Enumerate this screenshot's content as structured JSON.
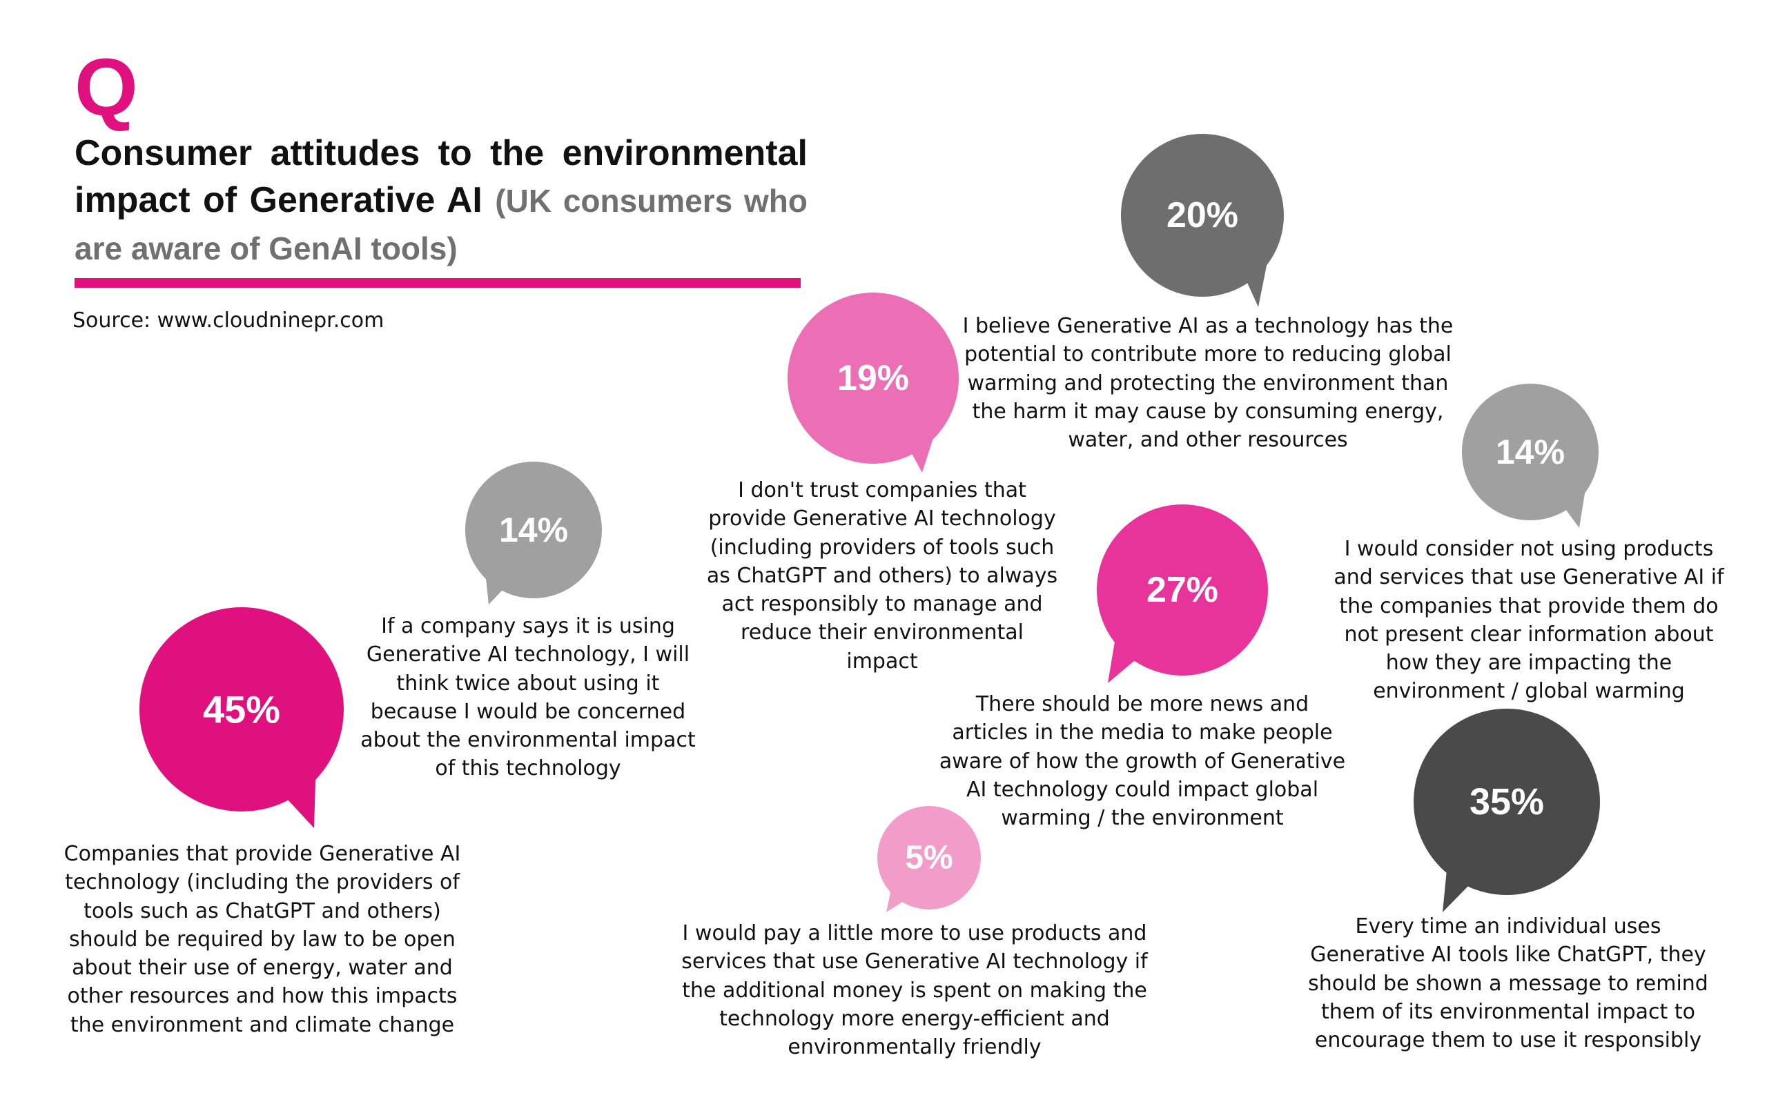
{
  "header": {
    "q_letter": "Q",
    "title": "Consumer attitudes to the environmental impact of Generative AI",
    "subtitle": "(UK consumers who are aware of GenAI tools)",
    "source": "Source: www.cloudninepr.com"
  },
  "colors": {
    "accent": "#e0117f",
    "title_gray": "#707070"
  },
  "chart_data": {
    "type": "bubble-callouts",
    "title": "Consumer attitudes to the environmental impact of Generative AI",
    "subtitle": "(UK consumers who are aware of GenAI tools)",
    "items": [
      {
        "label": "45%",
        "value": 45,
        "color": "#e0117f",
        "text": "Companies that provide Generative AI technology (including the providers of tools such as ChatGPT and others) should be required by law to be open about their use of energy, water and other resources and how this impacts the environment and climate change"
      },
      {
        "label": "14%",
        "value": 14,
        "color": "#a0a0a0",
        "text": "If a company says it is using Generative AI technology, I will think twice about using it because I would be concerned about the environmental impact of this technology"
      },
      {
        "label": "19%",
        "value": 19,
        "color": "#ec6eb5",
        "text": "I don't trust companies that provide Generative AI technology (including providers of tools such as ChatGPT and others) to always act responsibly to manage and reduce their environmental impact"
      },
      {
        "label": "20%",
        "value": 20,
        "color": "#6e6e6e",
        "text": "I believe Generative AI as a technology has the potential to contribute more to reducing global warming and protecting the environment than the harm it may cause by consuming energy, water, and other resources"
      },
      {
        "label": "27%",
        "value": 27,
        "color": "#e8339a",
        "text": "There should be more news and articles in the media to make people aware of how the growth of Generative AI technology could impact global warming / the environment"
      },
      {
        "label": "14%",
        "value": 14,
        "color": "#a0a0a0",
        "text": "I would consider not using products and services that use Generative AI if the companies that provide them do not present clear information about how they are impacting the environment / global warming"
      },
      {
        "label": "5%",
        "value": 5,
        "color": "#f29cc9",
        "text": "I would pay a little more to use products and services that use Generative AI technology if the additional money is spent on making the technology more energy-efficient and environmentally friendly"
      },
      {
        "label": "35%",
        "value": 35,
        "color": "#4a4a4a",
        "text": "Every time an individual uses Generative AI tools like ChatGPT, they should be shown a message to remind them of its environmental impact to encourage them to use it responsibly"
      }
    ]
  }
}
